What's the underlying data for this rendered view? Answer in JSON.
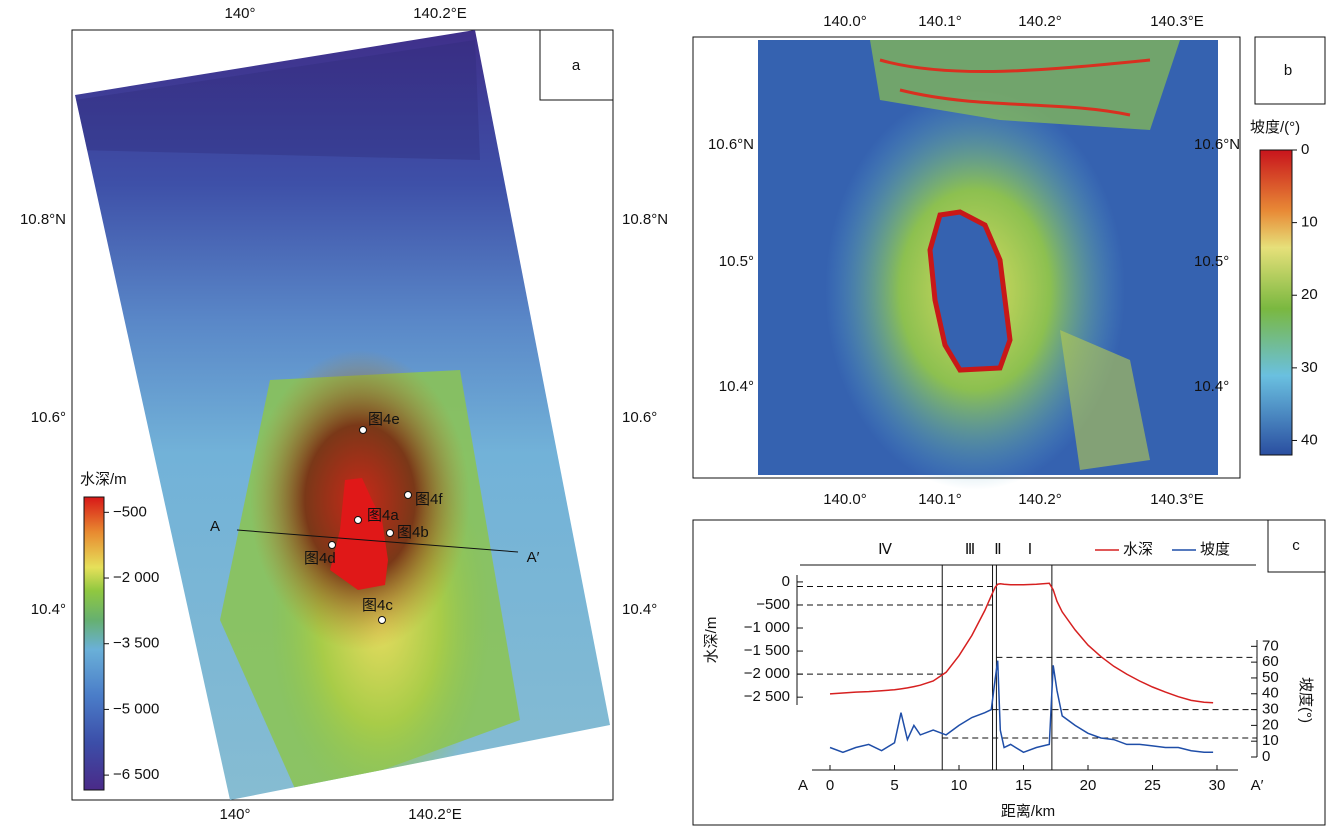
{
  "map_a": {
    "panel_label": "a",
    "lon_labels": [
      "140°",
      "140.2°E"
    ],
    "lat_labels": [
      "10.8°N",
      "10.6°",
      "10.4°"
    ],
    "colorbar": {
      "title": "水深/m",
      "lim": [
        -150,
        -6840
      ],
      "ticks": [
        {
          "value": -500,
          "label": "−500"
        },
        {
          "value": -2000,
          "label": "−2 000"
        },
        {
          "value": -3500,
          "label": "−3 500"
        },
        {
          "value": -5000,
          "label": "−5 000"
        },
        {
          "value": -6500,
          "label": "−6 500"
        }
      ]
    },
    "profile_ends": [
      "A",
      "A′"
    ],
    "sites": [
      "图4e",
      "图4f",
      "图4a",
      "图4b",
      "图4d",
      "图4c"
    ]
  },
  "map_b": {
    "panel_label": "b",
    "lon_labels": [
      "140.0°",
      "140.1°",
      "140.2°",
      "140.3°E"
    ],
    "lat_labels": [
      "10.6°N",
      "10.5°",
      "10.4°"
    ],
    "colorbar": {
      "title": "坡度/(°)",
      "lim": [
        0,
        42
      ],
      "ticks": [
        0,
        10,
        20,
        30,
        40
      ]
    }
  },
  "chart_data": {
    "type": "line",
    "panel_label": "c",
    "x_label": "距离/km",
    "y_label": "水深/m",
    "y2_label": "坡度(°)",
    "x_ends": [
      "A",
      "A′"
    ],
    "zones": [
      "Ⅳ",
      "Ⅲ",
      "Ⅱ",
      "Ⅰ"
    ],
    "zone_boundaries": [
      8.7,
      12.6,
      12.9,
      17.2
    ],
    "depth_refs": [
      -100,
      -500,
      -2000
    ],
    "slope_refs": [
      63,
      30,
      12
    ],
    "xlim": [
      0,
      30
    ],
    "xticks": [
      0,
      5,
      10,
      15,
      20,
      25,
      30
    ],
    "ylim": [
      -2670,
      150
    ],
    "yticks": [
      0,
      {
        "value": -500,
        "label": "−500"
      },
      {
        "value": -1000,
        "label": "−1 000"
      },
      {
        "value": -1500,
        "label": "−1 500"
      },
      {
        "value": -2000,
        "label": "−2 000"
      },
      {
        "value": -2500,
        "label": "−2 500"
      }
    ],
    "y2lim": [
      0,
      74
    ],
    "y2ticks": [
      0,
      10,
      20,
      30,
      40,
      50,
      60,
      70
    ],
    "x": [
      0,
      1,
      2,
      3,
      4,
      5,
      5.5,
      6,
      6.5,
      7,
      8,
      9,
      10,
      11,
      12,
      12.5,
      12.8,
      13,
      13.2,
      13.5,
      14,
      15,
      16,
      17,
      17.3,
      17.6,
      18,
      19,
      20,
      21,
      22,
      23,
      24,
      25,
      26,
      27,
      28,
      29,
      29.7
    ],
    "series": [
      {
        "name": "水深",
        "color": "#d62020",
        "values": [
          -2430,
          -2410,
          -2390,
          -2380,
          -2360,
          -2340,
          -2320,
          -2300,
          -2270,
          -2240,
          -2150,
          -1960,
          -1600,
          -1160,
          -620,
          -300,
          -120,
          -50,
          -40,
          -50,
          -60,
          -60,
          -50,
          -30,
          -170,
          -420,
          -650,
          -1040,
          -1370,
          -1620,
          -1830,
          -2000,
          -2150,
          -2280,
          -2390,
          -2490,
          -2570,
          -2610,
          -2620
        ]
      },
      {
        "name": "坡度",
        "color": "#1f4ea8",
        "axis": "y2",
        "values": [
          6,
          3,
          6,
          8,
          4,
          9,
          28,
          11,
          20,
          14,
          17,
          14,
          20,
          25,
          28,
          30,
          49,
          61,
          17,
          6,
          8,
          3,
          6,
          8,
          58,
          42,
          26,
          20,
          15,
          12,
          11,
          8,
          8,
          7,
          6,
          6,
          4,
          3,
          3
        ]
      }
    ]
  }
}
